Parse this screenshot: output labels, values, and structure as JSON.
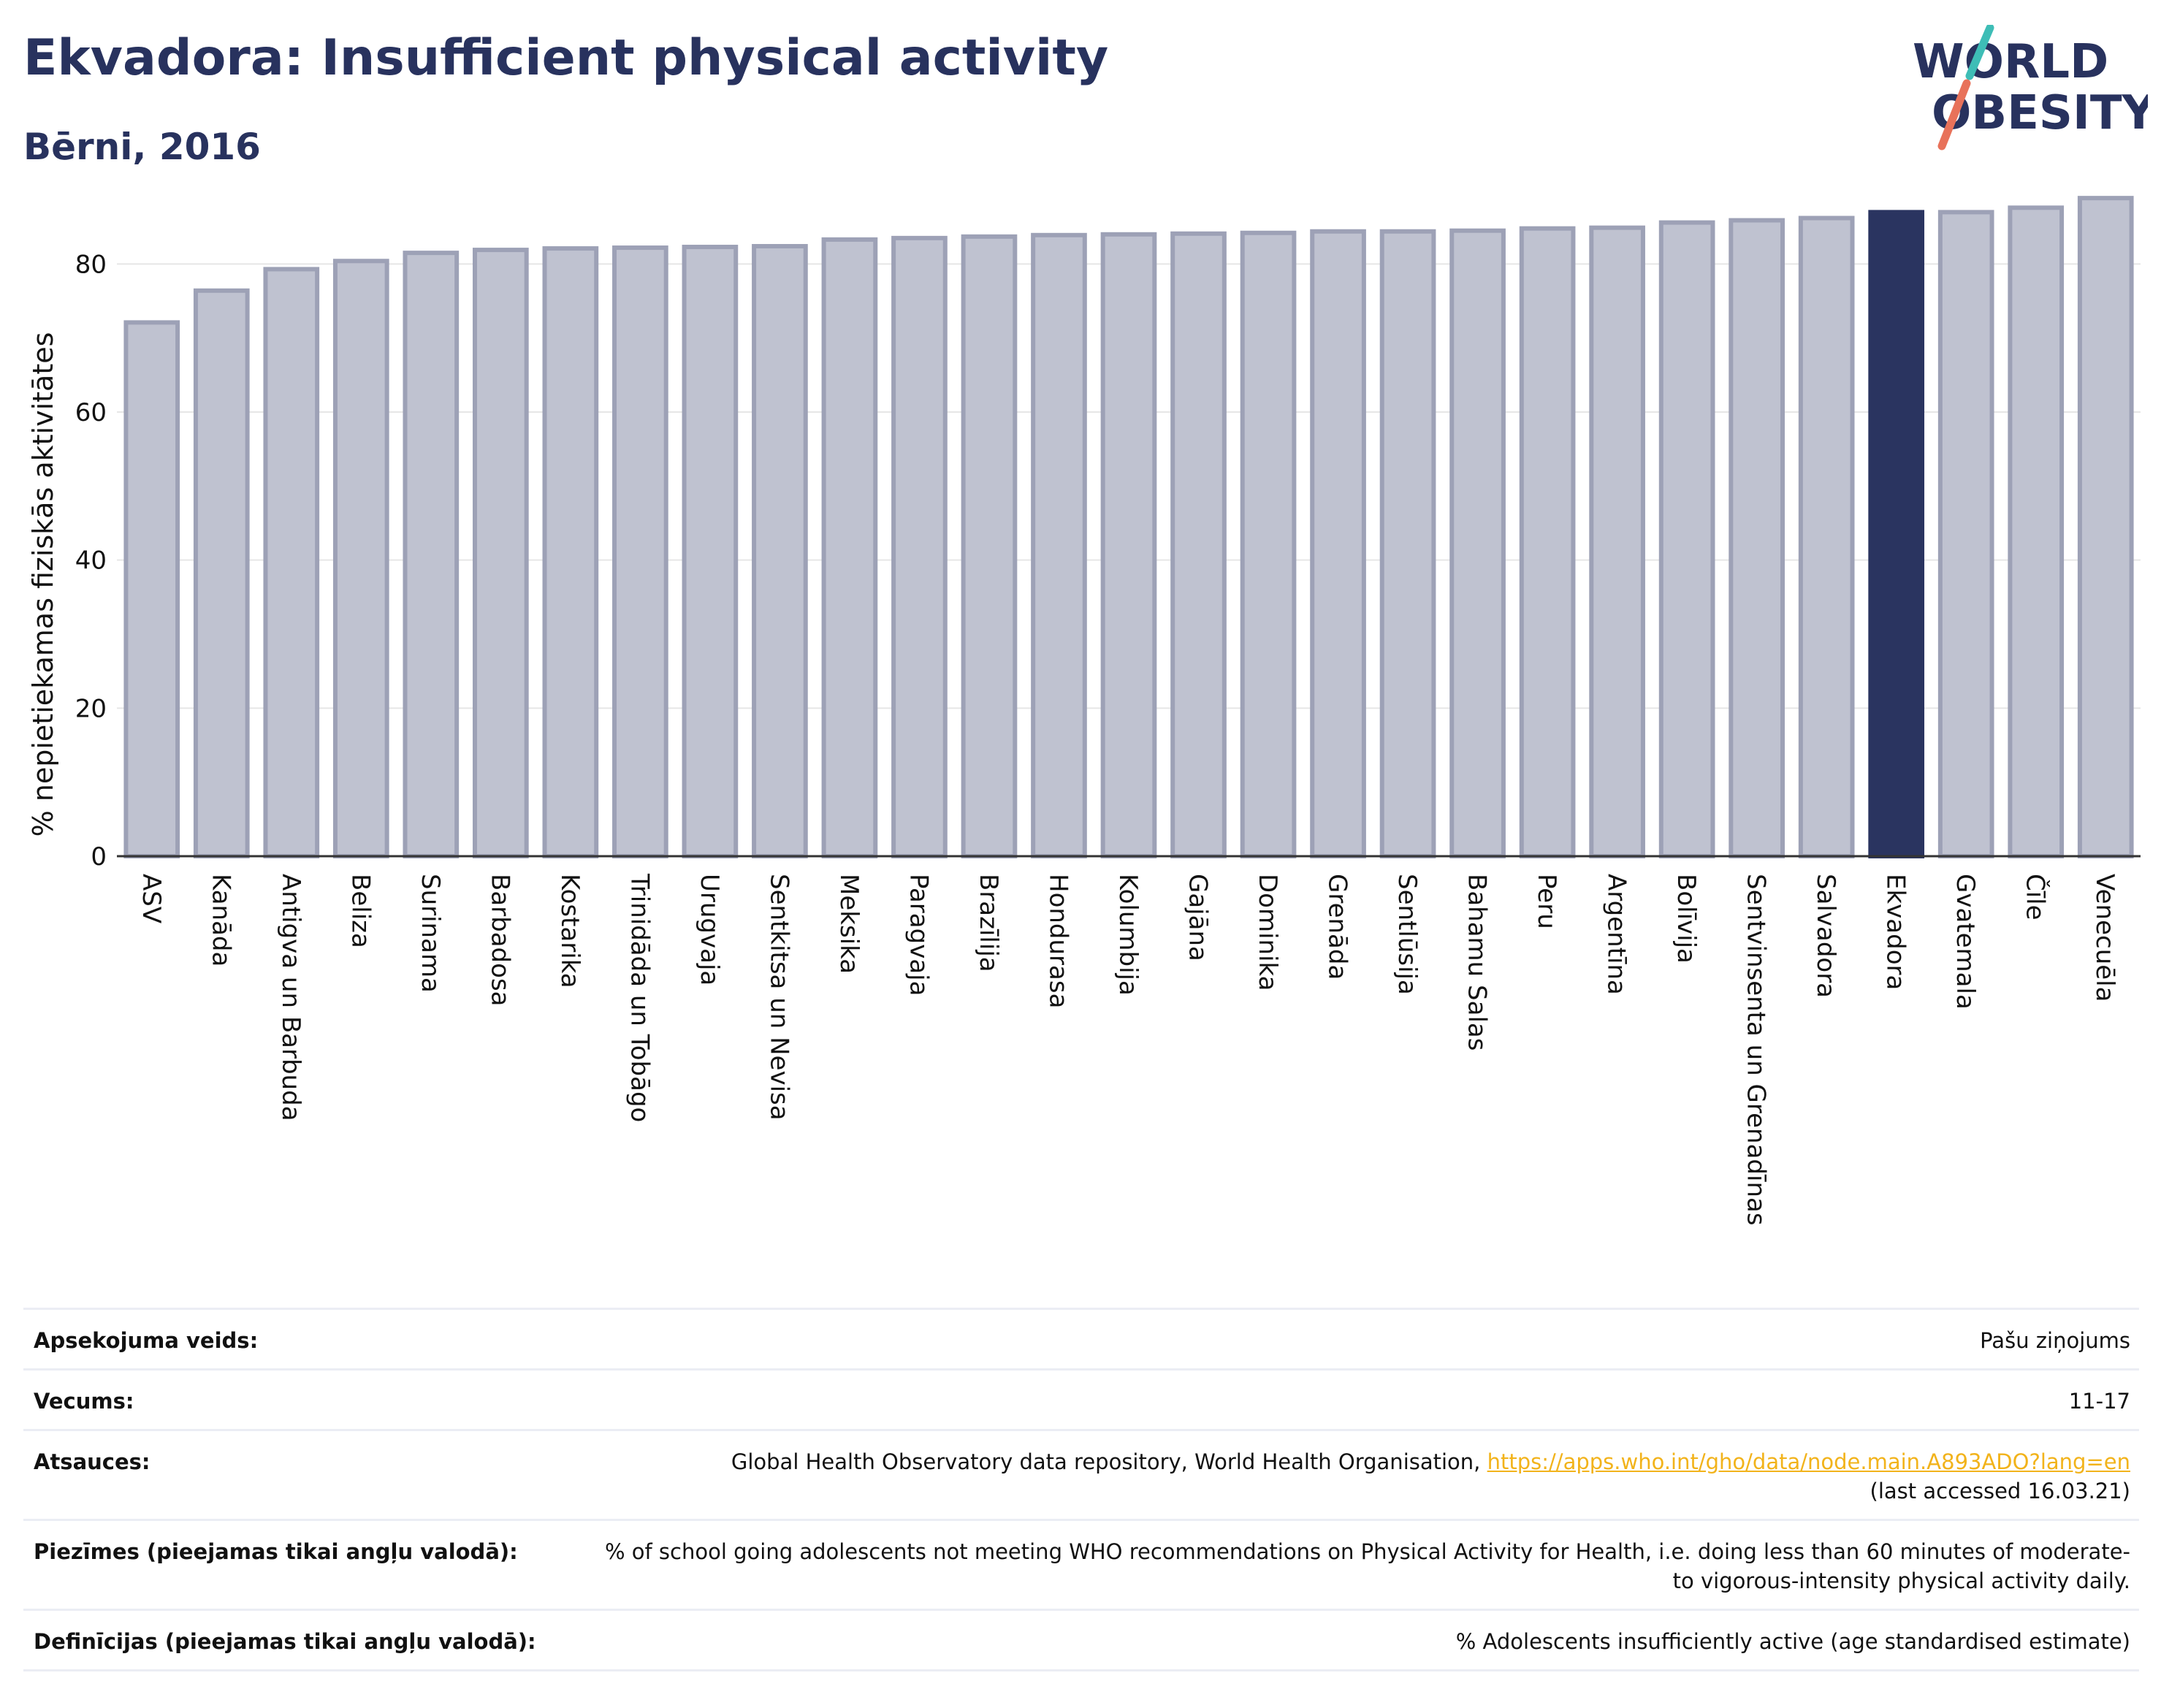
{
  "header": {
    "title": "Ekvadora: Insufficient physical activity",
    "subtitle": "Bērni, 2016"
  },
  "logo": {
    "text_world": "WORLD",
    "text_obesity": "OBESITY",
    "colors": {
      "navy": "#28325e",
      "teal": "#3ebdb6",
      "coral": "#e8725a"
    }
  },
  "colors": {
    "bar_fill": "#bfc2d0",
    "bar_stroke": "#9da1b6",
    "highlight": "#2a3460",
    "grid": "#e6e6e6",
    "axis": "#333333"
  },
  "chart_data": {
    "type": "bar",
    "ylabel": "% nepietiekamas fiziskās aktivitātes",
    "ylim": [
      0,
      90
    ],
    "yticks": [
      0,
      20,
      40,
      60,
      80
    ],
    "grid": true,
    "highlight_category": "Ekvadora",
    "categories": [
      "ASV",
      "Kanāda",
      "Antigva un Barbuda",
      "Beliza",
      "Surinama",
      "Barbadosa",
      "Kostarika",
      "Trinidāda un Tobāgo",
      "Urugvaja",
      "Sentkitsa un Nevisa",
      "Meksika",
      "Paragvaja",
      "Brazīlija",
      "Hondurasa",
      "Kolumbija",
      "Gajāna",
      "Dominika",
      "Grenāda",
      "Sentlūsija",
      "Bahamu Salas",
      "Peru",
      "Argentīna",
      "Bolīvija",
      "Sentvinsenta un Grenadīnas",
      "Salvadora",
      "Ekvadora",
      "Gvatemala",
      "Čīle",
      "Venecuēla"
    ],
    "values": [
      72.1,
      76.4,
      79.3,
      80.4,
      81.5,
      81.9,
      82.1,
      82.2,
      82.3,
      82.4,
      83.3,
      83.5,
      83.7,
      83.9,
      84.0,
      84.1,
      84.2,
      84.4,
      84.4,
      84.5,
      84.8,
      84.9,
      85.6,
      85.9,
      86.2,
      87.0,
      87.0,
      87.6,
      88.9
    ]
  },
  "info_table": [
    {
      "label": "Apsekojuma veids:",
      "value": "Pašu ziņojums"
    },
    {
      "label": "Vecums:",
      "value": "11-17"
    },
    {
      "label": "Atsauces:",
      "value": "Global Health Observatory data repository, World Health Organisation,",
      "link": "https://apps.who.int/gho/data/node.main.A893ADO?lang=en",
      "note": "(last accessed 16.03.21)"
    },
    {
      "label": "Piezīmes (pieejamas tikai angļu valodā):",
      "value": "% of school going adolescents not meeting WHO recommendations on Physical Activity for Health, i.e. doing less than 60 minutes of moderate- to vigorous-intensity physical activity daily."
    },
    {
      "label": "Definīcijas (pieejamas tikai angļu valodā):",
      "value": "% Adolescents insufficiently active (age standardised estimate)"
    }
  ]
}
